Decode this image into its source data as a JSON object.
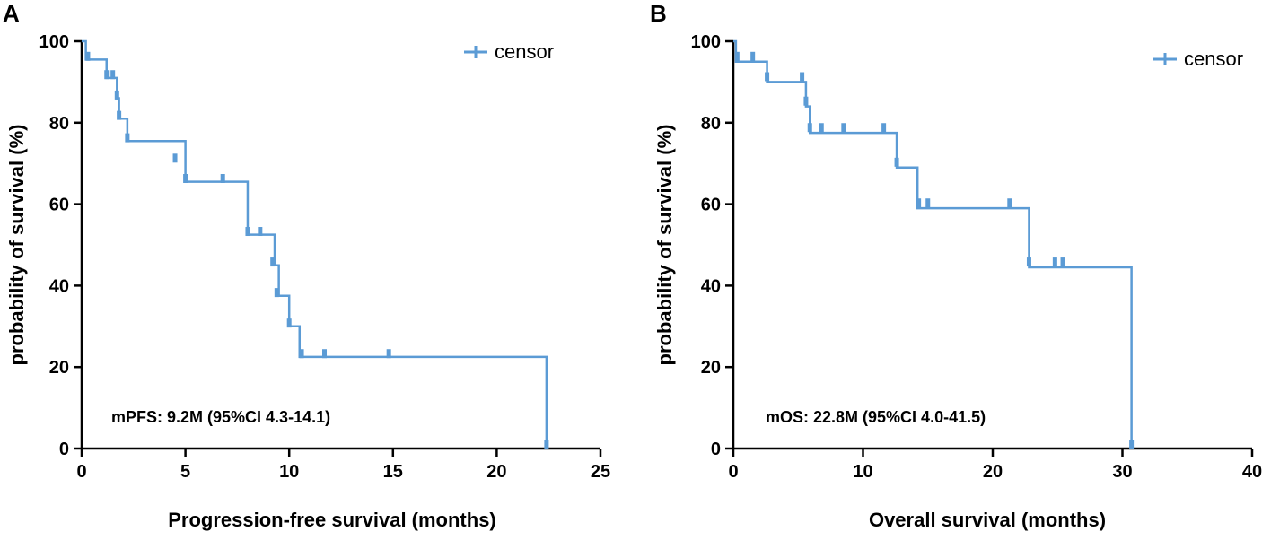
{
  "chart_data": [
    {
      "type": "line",
      "subtype": "kaplan-meier",
      "panel_label": "A",
      "xlabel": "Progression-free survival (months)",
      "ylabel": "probability of survival (%)",
      "xlim": [
        0,
        25
      ],
      "ylim": [
        0,
        100
      ],
      "xticks": [
        0,
        5,
        10,
        15,
        20,
        25
      ],
      "yticks": [
        0,
        20,
        40,
        60,
        80,
        100
      ],
      "xtick_labels": [
        "0",
        "5",
        "10",
        "15",
        "20",
        "25"
      ],
      "ytick_labels": [
        "0",
        "20",
        "40",
        "60",
        "80",
        "100"
      ],
      "legend": {
        "label": "censor",
        "marker": "+",
        "position": "top-right"
      },
      "annotation": "mPFS: 9.2M (95%CI 4.3-14.1)",
      "color": "#5b9bd5",
      "series": [
        {
          "name": "PFS",
          "steps": [
            [
              0,
              100
            ],
            [
              0.2,
              95.5
            ],
            [
              1.2,
              91
            ],
            [
              1.7,
              86
            ],
            [
              1.8,
              81
            ],
            [
              2.2,
              75.5
            ],
            [
              4.5,
              75.5
            ],
            [
              5.0,
              70.5
            ],
            [
              5.0,
              65.5
            ],
            [
              8.0,
              65.5
            ],
            [
              8.0,
              52.5
            ],
            [
              9.2,
              52.5
            ],
            [
              9.3,
              45
            ],
            [
              9.5,
              37.5
            ],
            [
              10.0,
              37.5
            ],
            [
              10.0,
              30
            ],
            [
              10.5,
              30
            ],
            [
              10.5,
              22.5
            ],
            [
              22.4,
              22.5
            ],
            [
              22.4,
              0
            ]
          ],
          "censor_points": [
            [
              0.3,
              96.3
            ],
            [
              1.2,
              91.8
            ],
            [
              1.5,
              91.8
            ],
            [
              1.7,
              86.8
            ],
            [
              1.8,
              81.8
            ],
            [
              2.2,
              76.3
            ],
            [
              4.5,
              71.3
            ],
            [
              5.0,
              66.3
            ],
            [
              6.8,
              66.3
            ],
            [
              8.0,
              53.3
            ],
            [
              8.6,
              53.3
            ],
            [
              9.2,
              45.8
            ],
            [
              9.4,
              38.3
            ],
            [
              10.0,
              30.8
            ],
            [
              10.6,
              23.3
            ],
            [
              11.7,
              23.3
            ],
            [
              14.8,
              23.3
            ],
            [
              22.4,
              1
            ]
          ]
        }
      ]
    },
    {
      "type": "line",
      "subtype": "kaplan-meier",
      "panel_label": "B",
      "xlabel": "Overall survival (months)",
      "ylabel": "probability of survival (%)",
      "xlim": [
        0,
        40
      ],
      "ylim": [
        0,
        100
      ],
      "xticks": [
        0,
        10,
        20,
        30,
        40
      ],
      "yticks": [
        0,
        20,
        40,
        60,
        80,
        100
      ],
      "xtick_labels": [
        "0",
        "10",
        "20",
        "30",
        "40"
      ],
      "ytick_labels": [
        "0",
        "20",
        "40",
        "60",
        "80",
        "100"
      ],
      "legend": {
        "label": "censor",
        "marker": "+",
        "position": "top-right"
      },
      "annotation": "mOS: 22.8M (95%CI 4.0-41.5)",
      "color": "#5b9bd5",
      "series": [
        {
          "name": "OS",
          "steps": [
            [
              0,
              100
            ],
            [
              0.2,
              95
            ],
            [
              2.6,
              95
            ],
            [
              2.6,
              90
            ],
            [
              5.6,
              90
            ],
            [
              5.6,
              84
            ],
            [
              5.9,
              84
            ],
            [
              5.9,
              77.5
            ],
            [
              12.6,
              77.5
            ],
            [
              12.6,
              69
            ],
            [
              14.2,
              69
            ],
            [
              14.2,
              59
            ],
            [
              22.8,
              59
            ],
            [
              22.8,
              44.5
            ],
            [
              30.7,
              44.5
            ],
            [
              30.7,
              0
            ]
          ],
          "censor_points": [
            [
              0.3,
              96.3
            ],
            [
              1.5,
              96.3
            ],
            [
              2.6,
              91.3
            ],
            [
              5.3,
              91.3
            ],
            [
              5.6,
              85.3
            ],
            [
              5.9,
              78.8
            ],
            [
              6.8,
              78.8
            ],
            [
              8.5,
              78.8
            ],
            [
              11.6,
              78.8
            ],
            [
              12.6,
              70.3
            ],
            [
              14.3,
              60.3
            ],
            [
              15.0,
              60.3
            ],
            [
              21.3,
              60.3
            ],
            [
              22.8,
              45.8
            ],
            [
              24.8,
              45.8
            ],
            [
              25.4,
              45.8
            ],
            [
              30.7,
              1
            ]
          ]
        }
      ]
    }
  ]
}
